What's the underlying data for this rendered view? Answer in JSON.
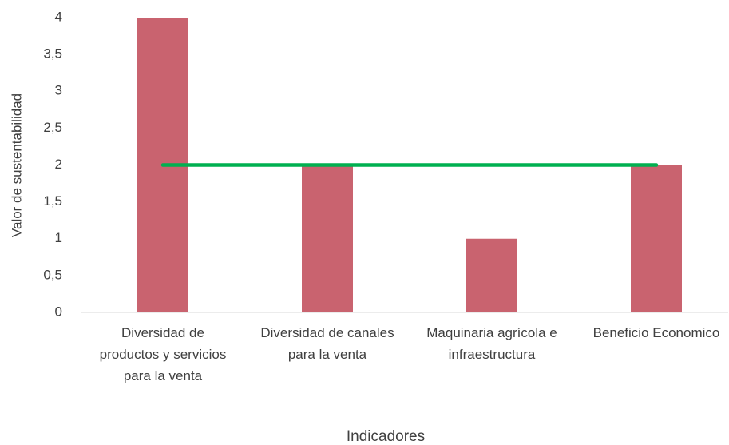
{
  "chart_data": {
    "type": "bar",
    "categories": [
      "Diversidad de productos y servicios para la venta",
      "Diversidad de canales para la venta",
      "Maquinaria agrícola e infraestructura",
      "Beneficio Economico"
    ],
    "series": [
      {
        "type": "bar",
        "color": "#c9636f",
        "values": [
          4,
          2,
          1,
          2
        ]
      },
      {
        "type": "line",
        "color": "#00b050",
        "values": [
          2,
          2,
          2,
          2
        ]
      }
    ],
    "ylim": [
      0,
      4
    ],
    "yticks": [
      0,
      {
        "value": 0.5,
        "label": "0,5"
      },
      1,
      {
        "value": 1.5,
        "label": "1,5"
      },
      2,
      {
        "value": 2.5,
        "label": "2,5"
      },
      3,
      {
        "value": 3.5,
        "label": "3,5"
      },
      4
    ],
    "xlabel": "Indicadores",
    "ylabel": "Valor de sustentabilidad",
    "grid": false
  }
}
